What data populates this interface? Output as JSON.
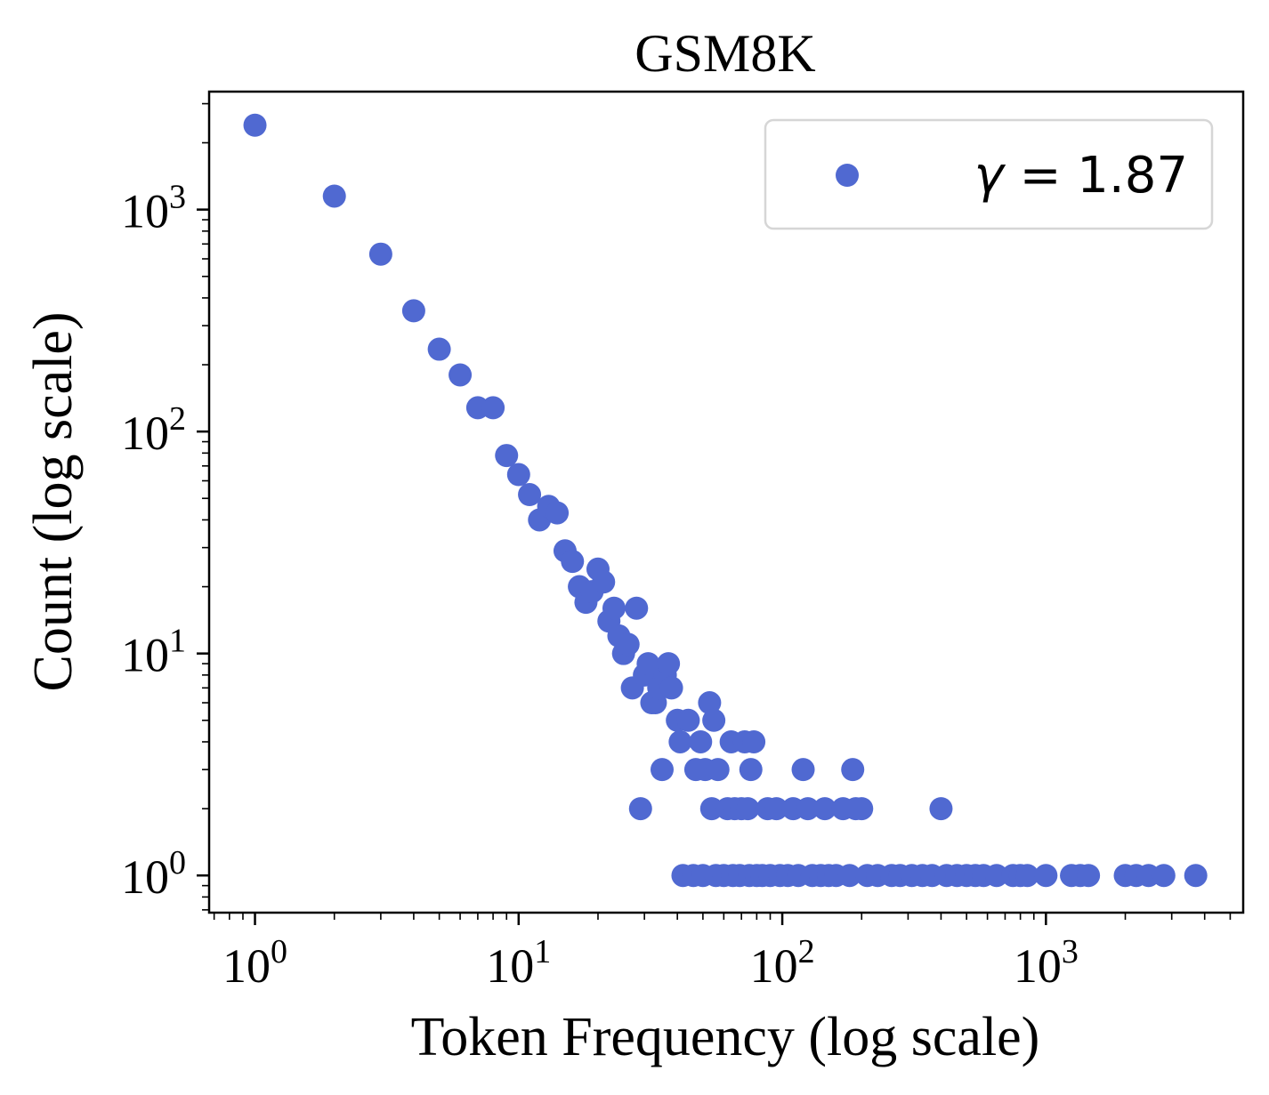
{
  "chart_data": {
    "type": "scatter",
    "title": "GSM8K",
    "xlabel": "Token Frequency (log scale)",
    "ylabel": "Count (log scale)",
    "xscale": "log",
    "yscale": "log",
    "xlim": [
      0.67,
      5600
    ],
    "ylim": [
      0.68,
      3400
    ],
    "xticks": [
      {
        "value": 1,
        "base": "10",
        "exp": "0"
      },
      {
        "value": 10,
        "base": "10",
        "exp": "1"
      },
      {
        "value": 100,
        "base": "10",
        "exp": "2"
      },
      {
        "value": 1000,
        "base": "10",
        "exp": "3"
      }
    ],
    "yticks": [
      {
        "value": 1,
        "base": "10",
        "exp": "0"
      },
      {
        "value": 10,
        "base": "10",
        "exp": "1"
      },
      {
        "value": 100,
        "base": "10",
        "exp": "2"
      },
      {
        "value": 1000,
        "base": "10",
        "exp": "3"
      }
    ],
    "grid": false,
    "legend": {
      "position": "top-right",
      "symbol": "γ",
      "text": " = 1.87"
    },
    "series": [
      {
        "name": "γ = 1.87",
        "color": "#5069d1",
        "points": [
          [
            1,
            2400
          ],
          [
            2,
            1150
          ],
          [
            3,
            630
          ],
          [
            4,
            350
          ],
          [
            5,
            235
          ],
          [
            6,
            180
          ],
          [
            7,
            128
          ],
          [
            8,
            128
          ],
          [
            9,
            78
          ],
          [
            10,
            64
          ],
          [
            11,
            52
          ],
          [
            12,
            40
          ],
          [
            13,
            46
          ],
          [
            14,
            43
          ],
          [
            15,
            29
          ],
          [
            16,
            26
          ],
          [
            17,
            20
          ],
          [
            18,
            17
          ],
          [
            19,
            19
          ],
          [
            20,
            24
          ],
          [
            21,
            21
          ],
          [
            22,
            14
          ],
          [
            23,
            16
          ],
          [
            24,
            12
          ],
          [
            25,
            10
          ],
          [
            26,
            11
          ],
          [
            27,
            7
          ],
          [
            28,
            16
          ],
          [
            29,
            2
          ],
          [
            30,
            8
          ],
          [
            31,
            9
          ],
          [
            32,
            6
          ],
          [
            33,
            6
          ],
          [
            34,
            7
          ],
          [
            35,
            3
          ],
          [
            36,
            8
          ],
          [
            37,
            9
          ],
          [
            38,
            7
          ],
          [
            40,
            5
          ],
          [
            41,
            4
          ],
          [
            42,
            1
          ],
          [
            44,
            5
          ],
          [
            46,
            1
          ],
          [
            47,
            3
          ],
          [
            49,
            4
          ],
          [
            50,
            1
          ],
          [
            51,
            3
          ],
          [
            53,
            6
          ],
          [
            54,
            2
          ],
          [
            55,
            5
          ],
          [
            56,
            1
          ],
          [
            57,
            3
          ],
          [
            60,
            1
          ],
          [
            62,
            2
          ],
          [
            64,
            4
          ],
          [
            65,
            1
          ],
          [
            66,
            2
          ],
          [
            69,
            1
          ],
          [
            70,
            2
          ],
          [
            72,
            4
          ],
          [
            74,
            2
          ],
          [
            75,
            1
          ],
          [
            76,
            3
          ],
          [
            78,
            4
          ],
          [
            80,
            1
          ],
          [
            84,
            1
          ],
          [
            88,
            2
          ],
          [
            90,
            1
          ],
          [
            95,
            2
          ],
          [
            98,
            1
          ],
          [
            105,
            1
          ],
          [
            110,
            2
          ],
          [
            115,
            1
          ],
          [
            120,
            3
          ],
          [
            125,
            2
          ],
          [
            130,
            1
          ],
          [
            140,
            1
          ],
          [
            145,
            2
          ],
          [
            150,
            1
          ],
          [
            160,
            1
          ],
          [
            170,
            2
          ],
          [
            180,
            1
          ],
          [
            185,
            3
          ],
          [
            190,
            2
          ],
          [
            200,
            2
          ],
          [
            210,
            1
          ],
          [
            230,
            1
          ],
          [
            260,
            1
          ],
          [
            280,
            1
          ],
          [
            310,
            1
          ],
          [
            340,
            1
          ],
          [
            370,
            1
          ],
          [
            400,
            2
          ],
          [
            420,
            1
          ],
          [
            460,
            1
          ],
          [
            500,
            1
          ],
          [
            540,
            1
          ],
          [
            580,
            1
          ],
          [
            650,
            1
          ],
          [
            750,
            1
          ],
          [
            800,
            1
          ],
          [
            850,
            1
          ],
          [
            1000,
            1
          ],
          [
            1250,
            1
          ],
          [
            1350,
            1
          ],
          [
            1450,
            1
          ],
          [
            2000,
            1
          ],
          [
            2200,
            1
          ],
          [
            2450,
            1
          ],
          [
            2800,
            1
          ],
          [
            3700,
            1
          ]
        ]
      }
    ]
  }
}
